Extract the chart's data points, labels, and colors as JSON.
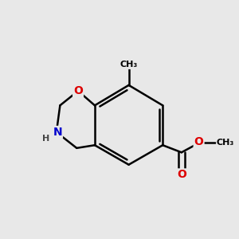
{
  "background_color": "#e8e8e8",
  "bond_color": "#000000",
  "bond_width": 1.8,
  "atom_colors": {
    "O": "#dd0000",
    "N": "#0000cc",
    "H": "#444444",
    "C": "#000000"
  },
  "fig_width": 3.0,
  "fig_height": 3.0,
  "dpi": 100
}
